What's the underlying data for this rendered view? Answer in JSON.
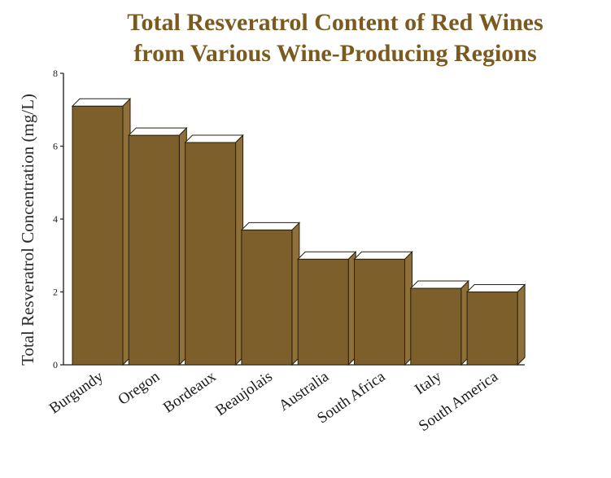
{
  "chart_data": {
    "type": "bar",
    "title_lines": [
      "Total Resveratrol Content of Red Wines",
      "from Various Wine-Producing Regions"
    ],
    "ylabel": "Total Resveratrol Concentration (mg/L)",
    "xlabel": "",
    "categories": [
      "Burgundy",
      "Oregon",
      "Bordeaux",
      "Beaujolais",
      "Australia",
      "South Africa",
      "Italy",
      "South America"
    ],
    "values": [
      7.1,
      6.3,
      6.1,
      3.7,
      2.9,
      2.9,
      2.1,
      2.0
    ],
    "ylim": [
      0,
      8
    ],
    "yticks": [
      0,
      2,
      4,
      6,
      8
    ],
    "grid": false,
    "legend": "none",
    "style": "3d-bar",
    "colors": {
      "bar_front": "#7d5f2b",
      "bar_side": "#8f7038",
      "bar_top": "#ffffff",
      "title": "#7a5a1e",
      "axis": "#1a1a1a"
    }
  }
}
